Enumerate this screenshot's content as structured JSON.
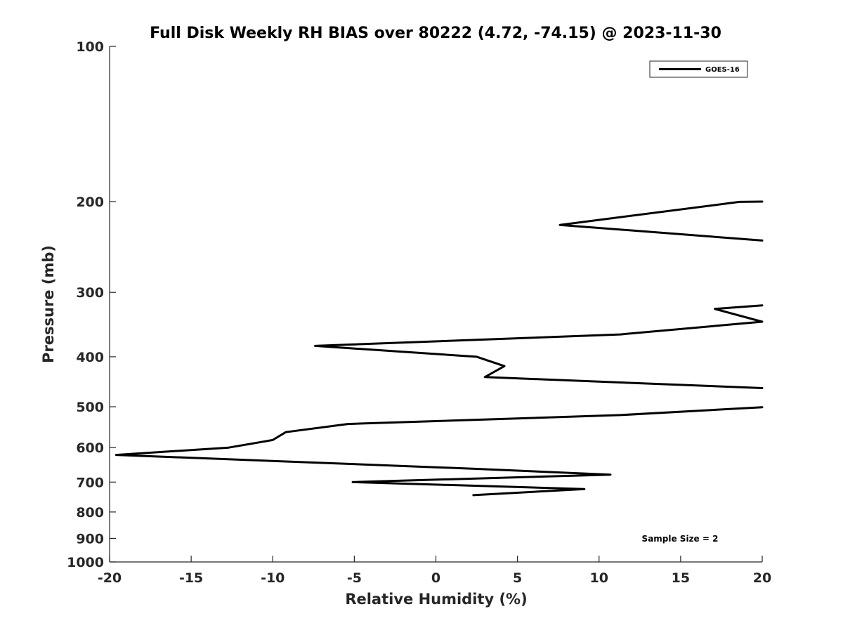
{
  "colors": {
    "background": "#ffffff",
    "axis": "#262626",
    "series_line": "#000000"
  },
  "chart_data": {
    "type": "line",
    "title": "Full Disk Weekly RH BIAS over 80222 (4.72, -74.15) @ 2023-11-30",
    "xlabel": "Relative Humidity (%)",
    "ylabel": "Pressure (mb)",
    "xlim": [
      -20,
      20
    ],
    "ylim": [
      100,
      1000
    ],
    "yscale": "log",
    "y_reversed": true,
    "grid": false,
    "legend_position": "top-right",
    "xticks": [
      "-20",
      "-15",
      "-10",
      "-5",
      "0",
      "5",
      "10",
      "15",
      "20"
    ],
    "yticks": [
      "100",
      "200",
      "300",
      "400",
      "500",
      "600",
      "700",
      "800",
      "900",
      "1000"
    ],
    "annotation": "Sample Size = 2",
    "series": [
      {
        "name": "GOES-16",
        "points": [
          [
            20,
            200
          ],
          [
            18.6,
            200.3
          ],
          [
            7.6,
            222
          ],
          [
            20,
            238
          ],
          [
            null,
            null
          ],
          [
            20,
            318
          ],
          [
            17.1,
            323
          ],
          [
            20,
            342
          ],
          [
            11.3,
            362
          ],
          [
            -7.4,
            381
          ],
          [
            2.5,
            400
          ],
          [
            4.2,
            417
          ],
          [
            3.0,
            438
          ],
          [
            20,
            460
          ],
          [
            null,
            null
          ],
          [
            20,
            501
          ],
          [
            11.3,
            519
          ],
          [
            -5.4,
            540
          ],
          [
            -9.2,
            560
          ],
          [
            -10.0,
            580
          ],
          [
            -12.7,
            600
          ],
          [
            -19.6,
            620
          ],
          [
            2.5,
            660
          ],
          [
            10.7,
            677
          ],
          [
            -5.1,
            700
          ],
          [
            9.1,
            722
          ],
          [
            2.3,
            742
          ]
        ]
      }
    ]
  }
}
